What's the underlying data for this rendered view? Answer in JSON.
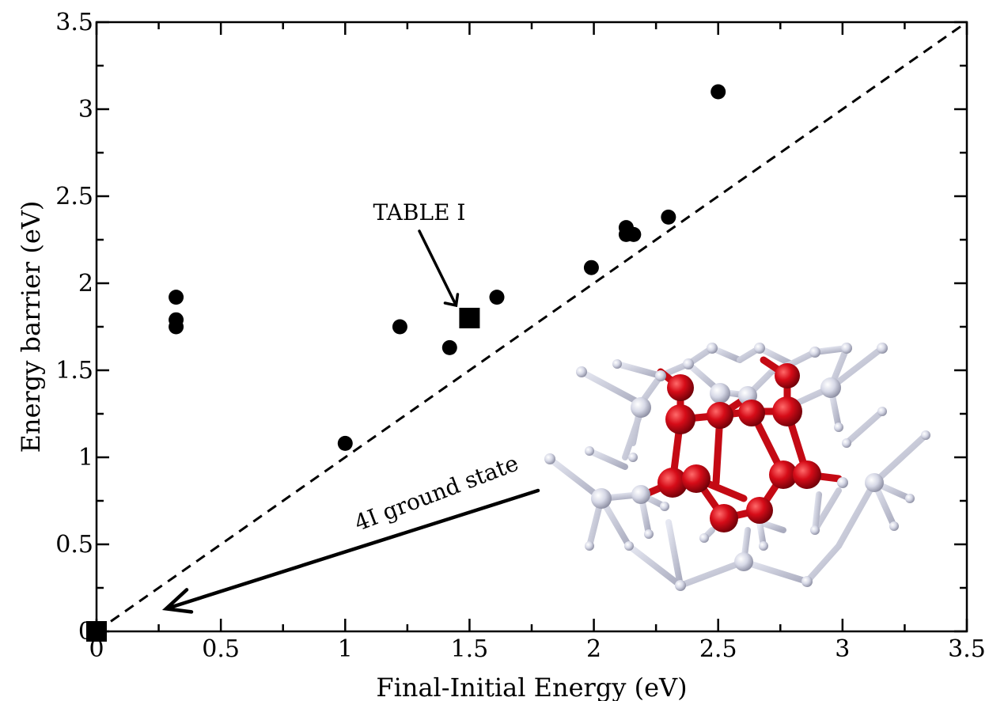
{
  "chart_data": {
    "type": "scatter",
    "xlabel": "Final-Initial Energy (eV)",
    "ylabel": "Energy barrier (eV)",
    "xlim": [
      0,
      3.5
    ],
    "ylim": [
      0,
      3.5
    ],
    "x_ticks": [
      "0",
      "0.5",
      "1",
      "1.5",
      "2",
      "2.5",
      "3",
      "3.5"
    ],
    "y_ticks": [
      "0",
      "0.5",
      "1",
      "1.5",
      "2",
      "2.5",
      "3",
      "3.5"
    ],
    "grid": false,
    "legend": "none",
    "series": [
      {
        "marker": "circle",
        "color": "#000000",
        "points": [
          {
            "x": 0.32,
            "y": 1.92
          },
          {
            "x": 0.32,
            "y": 1.79
          },
          {
            "x": 0.32,
            "y": 1.75
          },
          {
            "x": 1.0,
            "y": 1.08
          },
          {
            "x": 1.22,
            "y": 1.75
          },
          {
            "x": 1.42,
            "y": 1.63
          },
          {
            "x": 1.61,
            "y": 1.92
          },
          {
            "x": 1.99,
            "y": 2.09
          },
          {
            "x": 2.13,
            "y": 2.32
          },
          {
            "x": 2.13,
            "y": 2.28
          },
          {
            "x": 2.16,
            "y": 2.28
          },
          {
            "x": 2.3,
            "y": 2.38
          },
          {
            "x": 2.5,
            "y": 3.1
          }
        ]
      },
      {
        "marker": "square",
        "color": "#000000",
        "points": [
          {
            "x": 0.0,
            "y": 0.0
          },
          {
            "x": 1.5,
            "y": 1.8
          }
        ]
      }
    ],
    "reference_line": {
      "style": "dashed",
      "from": [
        0,
        0
      ],
      "to": [
        3.5,
        3.5
      ]
    },
    "annotations": [
      {
        "text": "TABLE I",
        "points_to": [
          1.5,
          1.8
        ]
      },
      {
        "text": "4I ground state",
        "points_to": [
          0.28,
          0.13
        ]
      }
    ],
    "inset": {
      "description_icon": "molecular-structure",
      "colors": {
        "highlight": "#cc0a14",
        "base": "#c3c6da"
      }
    }
  }
}
